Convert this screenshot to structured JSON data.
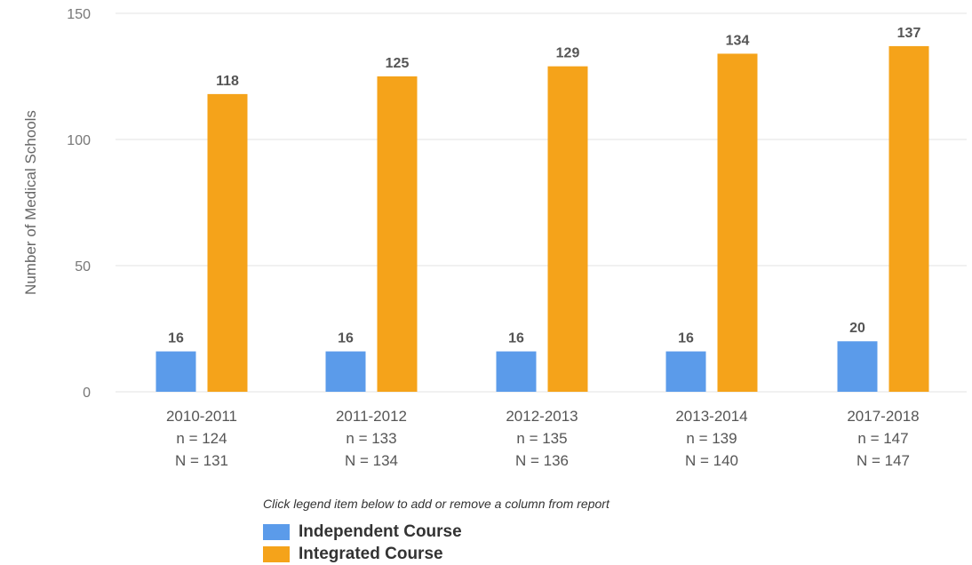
{
  "chart_data": {
    "type": "bar",
    "title": "",
    "xlabel": "",
    "ylabel": "Number of Medical Schools",
    "ylim": [
      0,
      150
    ],
    "yticks": [
      0,
      50,
      100,
      150
    ],
    "grid": true,
    "legend_position": "bottom",
    "categories": [
      "2010-2011",
      "2011-2012",
      "2012-2013",
      "2013-2014",
      "2017-2018"
    ],
    "category_sublabels": [
      [
        "n = 124",
        "N = 131"
      ],
      [
        "n = 133",
        "N = 134"
      ],
      [
        "n = 135",
        "N = 136"
      ],
      [
        "n = 139",
        "N = 140"
      ],
      [
        "n = 147",
        "N = 147"
      ]
    ],
    "series": [
      {
        "name": "Independent Course",
        "color": "#5b9bea",
        "values": [
          16,
          16,
          16,
          16,
          20
        ]
      },
      {
        "name": "Integrated Course",
        "color": "#f5a31a",
        "values": [
          118,
          125,
          129,
          134,
          137
        ]
      }
    ]
  },
  "legend": {
    "note": "Click legend item below to add or remove a column from report"
  }
}
